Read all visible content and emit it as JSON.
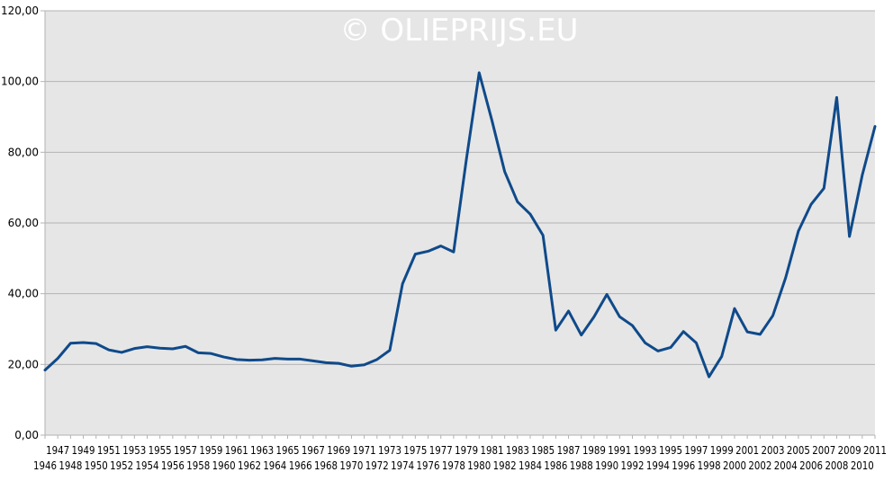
{
  "watermark": "© OLIEPRIJS.EU",
  "colors": {
    "line": "#0F4A8A",
    "plot_bg": "#E6E6E6",
    "grid": "#B3B3B3",
    "watermark": "#FFFFFF"
  },
  "chart_data": {
    "type": "line",
    "title": "",
    "xlabel": "",
    "ylabel": "",
    "ylim": [
      0,
      120
    ],
    "y_ticks": [
      "0,00",
      "20,00",
      "40,00",
      "60,00",
      "80,00",
      "100,00",
      "120,00"
    ],
    "grid": true,
    "legend": "none",
    "x": [
      "1946",
      "1947",
      "1948",
      "1949",
      "1950",
      "1951",
      "1952",
      "1953",
      "1954",
      "1955",
      "1956",
      "1957",
      "1958",
      "1959",
      "1960",
      "1961",
      "1962",
      "1963",
      "1964",
      "1965",
      "1966",
      "1967",
      "1968",
      "1969",
      "1970",
      "1971",
      "1972",
      "1973",
      "1974",
      "1975",
      "1976",
      "1977",
      "1978",
      "1979",
      "1980",
      "1981",
      "1982",
      "1983",
      "1984",
      "1985",
      "1986",
      "1987",
      "1988",
      "1989",
      "1990",
      "1991",
      "1992",
      "1993",
      "1994",
      "1995",
      "1996",
      "1997",
      "1998",
      "1999",
      "2000",
      "2001",
      "2002",
      "2003",
      "2004",
      "2005",
      "2006",
      "2007",
      "2008",
      "2009",
      "2010",
      "2011"
    ],
    "series": [
      {
        "values": [
          18.4,
          21.7,
          26.0,
          26.2,
          25.9,
          24.1,
          23.4,
          24.5,
          25.0,
          24.6,
          24.4,
          25.1,
          23.3,
          23.1,
          22.1,
          21.4,
          21.2,
          21.3,
          21.7,
          21.5,
          21.5,
          21.0,
          20.5,
          20.3,
          19.5,
          19.9,
          21.4,
          24.0,
          42.8,
          51.2,
          52.0,
          53.5,
          51.8,
          78.0,
          102.5,
          89.0,
          74.5,
          66.0,
          62.5,
          56.5,
          29.7,
          35.1,
          28.3,
          33.5,
          39.8,
          33.5,
          31.0,
          26.1,
          23.8,
          24.8,
          29.3,
          26.1,
          16.5,
          22.3,
          35.8,
          29.2,
          28.5,
          33.8,
          44.5,
          57.7,
          65.3,
          69.8,
          95.5,
          56.2,
          73.5,
          87.3
        ]
      }
    ]
  }
}
